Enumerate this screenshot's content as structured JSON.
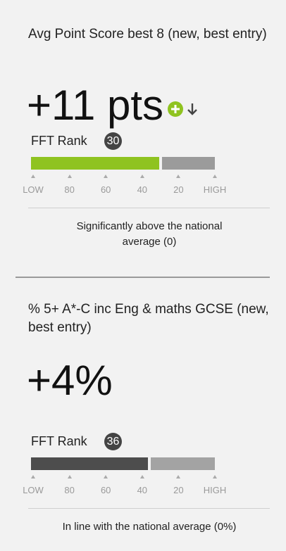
{
  "cards": [
    {
      "title": "Avg Point Score best 8 (new, best entry)",
      "score": "+11 pts",
      "rank_label": "FFT Rank",
      "rank": 30,
      "scale": [
        {
          "value": 100,
          "label": "LOW"
        },
        80,
        60,
        40,
        20,
        {
          "value": 0,
          "label": "HIGH"
        }
      ],
      "color": "#8fc320",
      "rest_color": "#9b9b9b",
      "description": "Significantly above the national average (0)"
    },
    {
      "title": "% 5+ A*-C inc Eng & maths GCSE (new, best entry)",
      "score": "+4%",
      "rank_label": "FFT Rank",
      "rank": 36,
      "scale": [
        {
          "value": 100,
          "label": "LOW"
        },
        80,
        60,
        40,
        20,
        {
          "value": 0,
          "label": "HIGH"
        }
      ],
      "color": "#4d4d4d",
      "rest_color": "#a3a3a3",
      "description": "In line with the national average (0%)"
    }
  ]
}
